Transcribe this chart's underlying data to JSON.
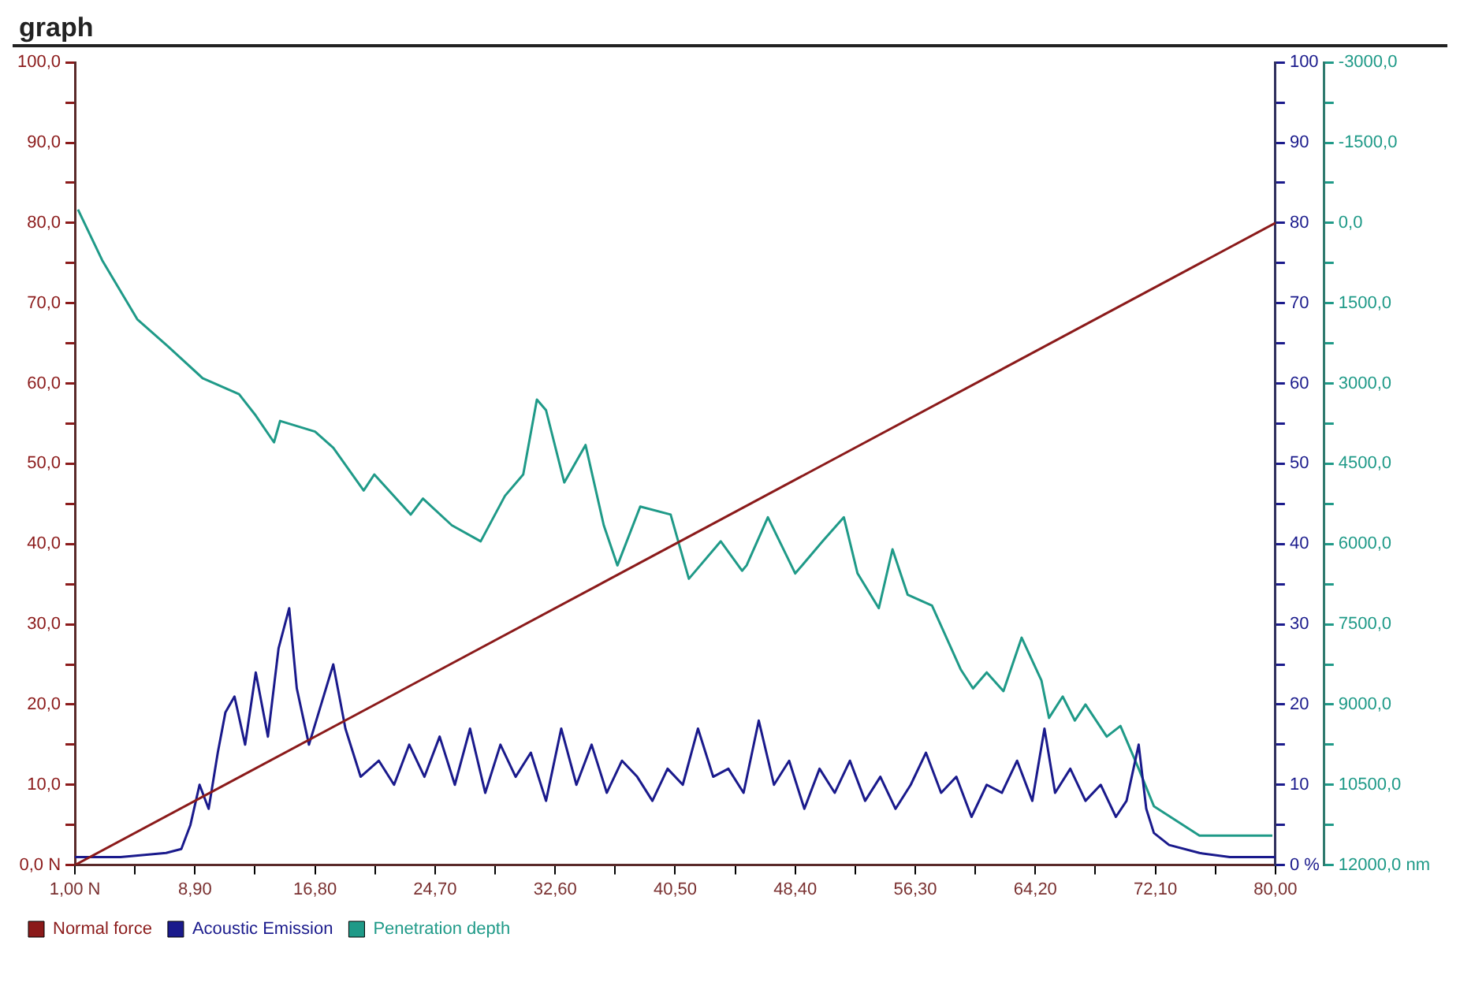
{
  "chart_data": {
    "type": "line",
    "title": "graph",
    "legend": "bottom left",
    "grid": false,
    "marker": "none",
    "line_style": "solid",
    "xlim": [
      1,
      80
    ],
    "xticks": [
      {
        "value": 1,
        "label": "1,00 N"
      },
      {
        "value": 4.95,
        "label": null
      },
      {
        "value": 8.9,
        "label": "8,90"
      },
      {
        "value": 12.85,
        "label": null
      },
      {
        "value": 16.8,
        "label": "16,80"
      },
      {
        "value": 20.75,
        "label": null
      },
      {
        "value": 24.7,
        "label": "24,70"
      },
      {
        "value": 28.65,
        "label": null
      },
      {
        "value": 32.6,
        "label": "32,60"
      },
      {
        "value": 36.55,
        "label": null
      },
      {
        "value": 40.5,
        "label": "40,50"
      },
      {
        "value": 44.45,
        "label": null
      },
      {
        "value": 48.4,
        "label": "48,40"
      },
      {
        "value": 52.35,
        "label": null
      },
      {
        "value": 56.3,
        "label": "56,30"
      },
      {
        "value": 60.25,
        "label": null
      },
      {
        "value": 64.2,
        "label": "64,20"
      },
      {
        "value": 68.15,
        "label": null
      },
      {
        "value": 72.1,
        "label": "72,10"
      },
      {
        "value": 76.05,
        "label": null
      },
      {
        "value": 80,
        "label": "80,00"
      }
    ],
    "ylim": [
      0,
      100
    ],
    "yticks": [
      {
        "value": 0,
        "label": "0,0 N"
      },
      {
        "value": 5,
        "label": null
      },
      {
        "value": 10,
        "label": "10,0"
      },
      {
        "value": 15,
        "label": null
      },
      {
        "value": 20,
        "label": "20,0"
      },
      {
        "value": 25,
        "label": null
      },
      {
        "value": 30,
        "label": "30,0"
      },
      {
        "value": 35,
        "label": null
      },
      {
        "value": 40,
        "label": "40,0"
      },
      {
        "value": 45,
        "label": null
      },
      {
        "value": 50,
        "label": "50,0"
      },
      {
        "value": 55,
        "label": null
      },
      {
        "value": 60,
        "label": "60,0"
      },
      {
        "value": 65,
        "label": null
      },
      {
        "value": 70,
        "label": "70,0"
      },
      {
        "value": 75,
        "label": null
      },
      {
        "value": 80,
        "label": "80,0"
      },
      {
        "value": 85,
        "label": null
      },
      {
        "value": 90,
        "label": "90,0"
      },
      {
        "value": 95,
        "label": null
      },
      {
        "value": 100,
        "label": "100,0"
      }
    ],
    "y2lim": [
      0,
      100
    ],
    "y2ticks": [
      {
        "value": 0,
        "label": "0 %"
      },
      {
        "value": 5,
        "label": null
      },
      10,
      {
        "value": 15,
        "label": null
      },
      20,
      {
        "value": 25,
        "label": null
      },
      30,
      {
        "value": 35,
        "label": null
      },
      40,
      {
        "value": 45,
        "label": null
      },
      50,
      {
        "value": 55,
        "label": null
      },
      60,
      {
        "value": 65,
        "label": null
      },
      70,
      {
        "value": 75,
        "label": null
      },
      80,
      {
        "value": 85,
        "label": null
      },
      90,
      {
        "value": 95,
        "label": null
      },
      100
    ],
    "y3lim": [
      12000,
      -3000
    ],
    "y3ticks": [
      {
        "value": -3000,
        "label": "-3000,0"
      },
      {
        "value": -2250,
        "label": null
      },
      {
        "value": -1500,
        "label": "-1500,0"
      },
      {
        "value": -750,
        "label": null
      },
      {
        "value": 0,
        "label": "0,0"
      },
      {
        "value": 750,
        "label": null
      },
      {
        "value": 1500,
        "label": "1500,0"
      },
      {
        "value": 2250,
        "label": null
      },
      {
        "value": 3000,
        "label": "3000,0"
      },
      {
        "value": 3750,
        "label": null
      },
      {
        "value": 4500,
        "label": "4500,0"
      },
      {
        "value": 5250,
        "label": null
      },
      {
        "value": 6000,
        "label": "6000,0"
      },
      {
        "value": 6750,
        "label": null
      },
      {
        "value": 7500,
        "label": "7500,0"
      },
      {
        "value": 8250,
        "label": null
      },
      {
        "value": 9000,
        "label": "9000,0"
      },
      {
        "value": 9750,
        "label": null
      },
      {
        "value": 10500,
        "label": "10500,0"
      },
      {
        "value": 11250,
        "label": null
      },
      {
        "value": 12000,
        "label": "12000,0 nm"
      }
    ],
    "series": [
      {
        "name": "Normal force",
        "color": "#8b1a1a",
        "x": [
          1,
          80
        ],
        "values": [
          0,
          80
        ]
      },
      {
        "name": "Acoustic Emission",
        "color": "#1a1a8c",
        "axis": "y2",
        "x": [
          1,
          4,
          7,
          8,
          8.6,
          9.2,
          9.8,
          10.4,
          10.9,
          11.5,
          12.2,
          12.9,
          13.7,
          14.4,
          15.1,
          15.6,
          16.4,
          17.2,
          18,
          18.8,
          19.8,
          21,
          22,
          23,
          24,
          25,
          26,
          27,
          28,
          29,
          30,
          31,
          32,
          33,
          34,
          35,
          36,
          37,
          38,
          39,
          40,
          41,
          42,
          43,
          44,
          45,
          46,
          47,
          48,
          49,
          50,
          51,
          52,
          53,
          54,
          55,
          56,
          57,
          58,
          59,
          60,
          61,
          62,
          63,
          64,
          64.8,
          65.5,
          66.5,
          67.5,
          68.5,
          69.5,
          70.2,
          71,
          71.5,
          72,
          73,
          75,
          77,
          80
        ],
        "values": [
          1,
          1,
          1.5,
          2,
          5,
          10,
          7,
          14,
          19,
          21,
          15,
          24,
          16,
          27,
          32,
          22,
          15,
          20,
          25,
          17,
          11,
          13,
          10,
          15,
          11,
          16,
          10,
          17,
          9,
          15,
          11,
          14,
          8,
          17,
          10,
          15,
          9,
          13,
          11,
          8,
          12,
          10,
          17,
          11,
          12,
          9,
          18,
          10,
          13,
          7,
          12,
          9,
          13,
          8,
          11,
          7,
          10,
          14,
          9,
          11,
          6,
          10,
          9,
          13,
          8,
          17,
          9,
          12,
          8,
          10,
          6,
          8,
          15,
          7,
          4,
          2.5,
          1.5,
          1,
          1
        ]
      },
      {
        "name": "Penetration depth",
        "color": "#1f9a88",
        "axis": "y3",
        "x": [
          1.2,
          2.8,
          5.1,
          7.1,
          9.4,
          11.8,
          12.9,
          14.1,
          14.5,
          16.8,
          18,
          20,
          20.7,
          23.1,
          23.9,
          25.8,
          27.7,
          29.3,
          30.5,
          31.4,
          32,
          33.2,
          34.6,
          35.8,
          36.7,
          38.2,
          40.2,
          41.4,
          43.5,
          44.9,
          45.2,
          46.6,
          48.4,
          50.2,
          51.6,
          52.5,
          53.9,
          54.8,
          55.8,
          57.4,
          59.3,
          60.1,
          61,
          62.1,
          63.3,
          64.6,
          65.1,
          66,
          66.8,
          67.5,
          68.9,
          69.8,
          71,
          72,
          75,
          78,
          79.8
        ],
        "values": [
          -250,
          700,
          1800,
          2300,
          2900,
          3200,
          3600,
          4100,
          3700,
          3900,
          4200,
          5000,
          4700,
          5450,
          5150,
          5650,
          5950,
          5100,
          4700,
          3300,
          3500,
          4850,
          4150,
          5650,
          6400,
          5300,
          5450,
          6650,
          5950,
          6500,
          6400,
          5500,
          6550,
          5950,
          5500,
          6550,
          7200,
          6100,
          6950,
          7150,
          8350,
          8700,
          8400,
          8750,
          7750,
          8550,
          9250,
          8850,
          9300,
          9000,
          9600,
          9400,
          10200,
          10900,
          11450,
          11450,
          11450
        ]
      }
    ]
  }
}
